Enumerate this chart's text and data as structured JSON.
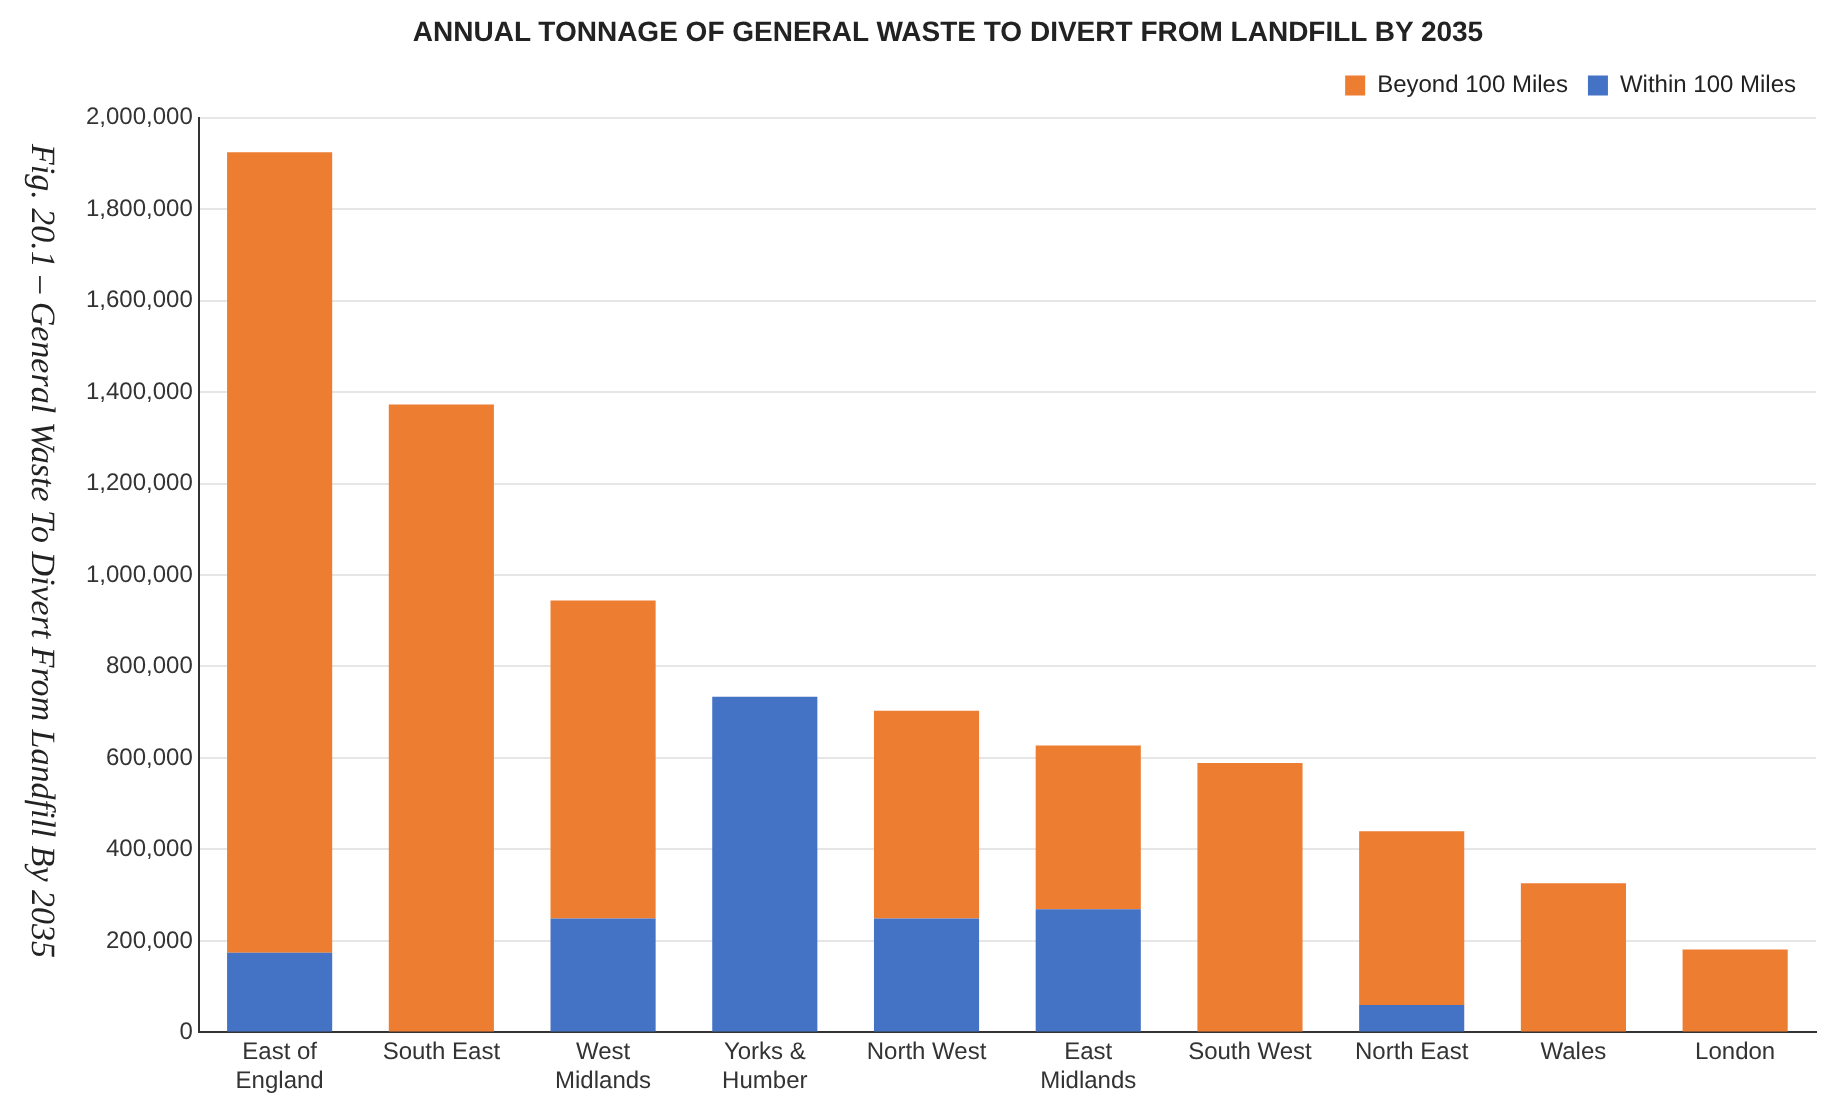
{
  "chart_data": {
    "type": "bar",
    "title": "ANNUAL TONNAGE OF GENERAL WASTE TO DIVERT FROM LANDFILL BY 2035",
    "categories": [
      "East of England",
      "South East",
      "West Midlands",
      "Yorks & Humber",
      "North West",
      "East Midlands",
      "South West",
      "North East",
      "Wales",
      "London"
    ],
    "series": [
      {
        "name": "Within 100 Miles",
        "color": "#4472c4",
        "values": [
          174000,
          0,
          249000,
          734000,
          249000,
          269000,
          0,
          60000,
          0,
          0
        ]
      },
      {
        "name": "Beyond 100 Miles",
        "color": "#ed7d31",
        "values": [
          1750000,
          1373000,
          695000,
          0,
          454000,
          358000,
          589000,
          380000,
          326000,
          181000
        ]
      }
    ],
    "stacked": true,
    "ylim": [
      0,
      2000000
    ],
    "yticks": [
      {
        "value": 0,
        "label": "0"
      },
      {
        "value": 200000,
        "label": "200,000"
      },
      {
        "value": 400000,
        "label": "400,000"
      },
      {
        "value": 600000,
        "label": "600,000"
      },
      {
        "value": 800000,
        "label": "800,000"
      },
      {
        "value": 1000000,
        "label": "1,000,000"
      },
      {
        "value": 1200000,
        "label": "1,200,000"
      },
      {
        "value": 1400000,
        "label": "1,400,000"
      },
      {
        "value": 1600000,
        "label": "1,600,000"
      },
      {
        "value": 1800000,
        "label": "1,800,000"
      },
      {
        "value": 2000000,
        "label": "2,000,000"
      }
    ],
    "grid": "y",
    "legend": "top right",
    "annotations": [
      "Fig. 20.1 – General Waste To Divert From Landfill By 2035"
    ]
  }
}
